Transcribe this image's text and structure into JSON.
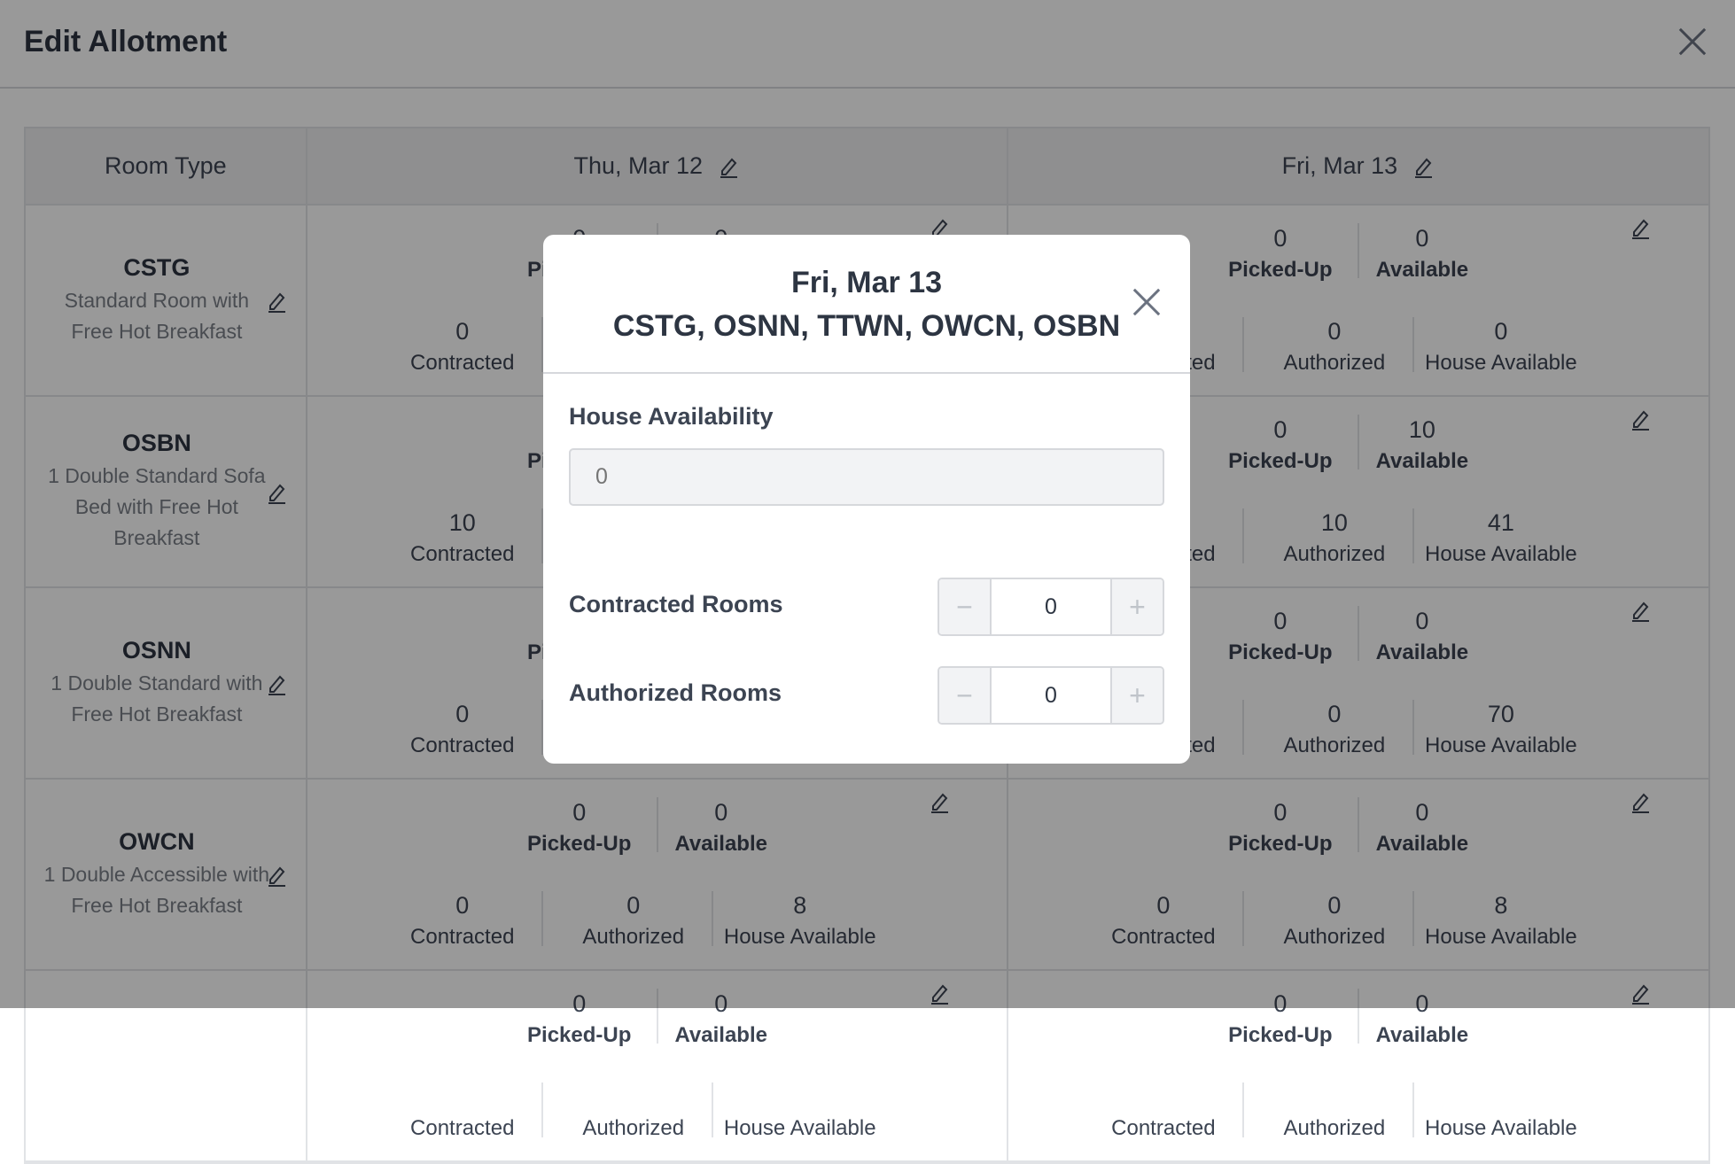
{
  "header": {
    "title": "Edit Allotment"
  },
  "table": {
    "room_type_header": "Room Type",
    "dates": [
      "Thu, Mar 12",
      "Fri, Mar 13"
    ],
    "labels": {
      "picked_up": "Picked-Up",
      "available": "Available",
      "contracted": "Contracted",
      "authorized": "Authorized",
      "house_available": "House Available"
    },
    "rows": [
      {
        "code": "CSTG",
        "desc": "Standard Room with Free Hot Breakfast",
        "thu": {
          "picked_up": "0",
          "available": "0",
          "contracted": "0",
          "authorized": "",
          "house_available": ""
        },
        "fri": {
          "picked_up": "0",
          "available": "0",
          "contracted": "",
          "authorized": "0",
          "house_available": "0"
        }
      },
      {
        "code": "OSBN",
        "desc": "1 Double Standard Sofa Bed with Free Hot Breakfast",
        "thu": {
          "picked_up": "",
          "available": "",
          "contracted": "10",
          "authorized": "",
          "house_available": ""
        },
        "fri": {
          "picked_up": "0",
          "available": "10",
          "contracted": "",
          "authorized": "10",
          "house_available": "41"
        }
      },
      {
        "code": "OSNN",
        "desc": "1 Double Standard with Free Hot Breakfast",
        "thu": {
          "picked_up": "",
          "available": "",
          "contracted": "0",
          "authorized": "",
          "house_available": ""
        },
        "fri": {
          "picked_up": "0",
          "available": "0",
          "contracted": "",
          "authorized": "0",
          "house_available": "70"
        }
      },
      {
        "code": "OWCN",
        "desc": "1 Double Accessible with Free Hot Breakfast",
        "thu": {
          "picked_up": "0",
          "available": "0",
          "contracted": "0",
          "authorized": "0",
          "house_available": "8"
        },
        "fri": {
          "picked_up": "0",
          "available": "0",
          "contracted": "0",
          "authorized": "0",
          "house_available": "8"
        }
      },
      {
        "code": "",
        "desc": "",
        "thu": {
          "picked_up": "0",
          "available": "0",
          "contracted": "",
          "authorized": "",
          "house_available": ""
        },
        "fri": {
          "picked_up": "0",
          "available": "0",
          "contracted": "",
          "authorized": "",
          "house_available": ""
        }
      }
    ]
  },
  "modal": {
    "date": "Fri, Mar 13",
    "room_types": "CSTG, OSNN, TTWN, OWCN, OSBN",
    "house_availability_label": "House Availability",
    "house_availability_placeholder": "0",
    "contracted_label": "Contracted Rooms",
    "contracted_value": "0",
    "authorized_label": "Authorized Rooms",
    "authorized_value": "0",
    "minus": "−",
    "plus": "+"
  }
}
